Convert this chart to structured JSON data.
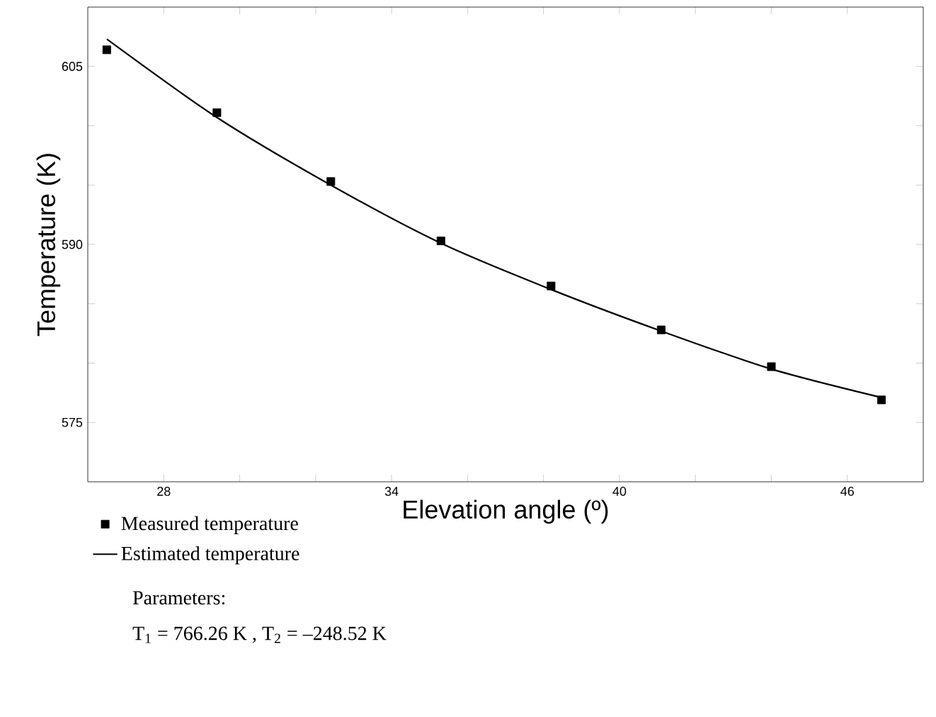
{
  "chart_data": {
    "type": "scatter",
    "xlabel": "Elevation angle (º)",
    "ylabel": "Temperature (K)",
    "xlim": [
      26,
      48
    ],
    "ylim": [
      570,
      610
    ],
    "xticks": [
      28,
      {
        "value": 30,
        "label": null
      },
      {
        "value": 32,
        "label": null
      },
      34,
      {
        "value": 36,
        "label": null
      },
      {
        "value": 38,
        "label": null
      },
      40,
      {
        "value": 42,
        "label": null
      },
      {
        "value": 44,
        "label": null
      },
      46
    ],
    "yticks": [
      575,
      {
        "value": 580,
        "label": null
      },
      {
        "value": 585,
        "label": null
      },
      590,
      {
        "value": 595,
        "label": null
      },
      {
        "value": 600,
        "label": null
      },
      605
    ],
    "legend": "bottom",
    "series": [
      {
        "name": "Measured temperature",
        "marker": "square",
        "color": "#000000",
        "x": [
          26.5,
          29.4,
          32.4,
          35.3,
          38.2,
          41.1,
          44.0,
          46.9
        ],
        "values": [
          606.4,
          601.1,
          595.3,
          590.3,
          586.5,
          582.8,
          579.7,
          576.9
        ]
      },
      {
        "name": "Estimated temperature",
        "type": "line",
        "marker": "none",
        "line_style": "solid",
        "color": "#000000",
        "x": [
          26.5,
          29.4,
          32.4,
          35.3,
          38.2,
          41.1,
          44.0,
          46.9
        ],
        "values": [
          607.3,
          600.7,
          595.0,
          590.1,
          586.2,
          582.7,
          579.5,
          577.1
        ]
      }
    ],
    "annotations": [
      "Parameters:",
      "T$_{1}$ = 766.26 K , T$_{2}$ = –248.52 K"
    ]
  }
}
